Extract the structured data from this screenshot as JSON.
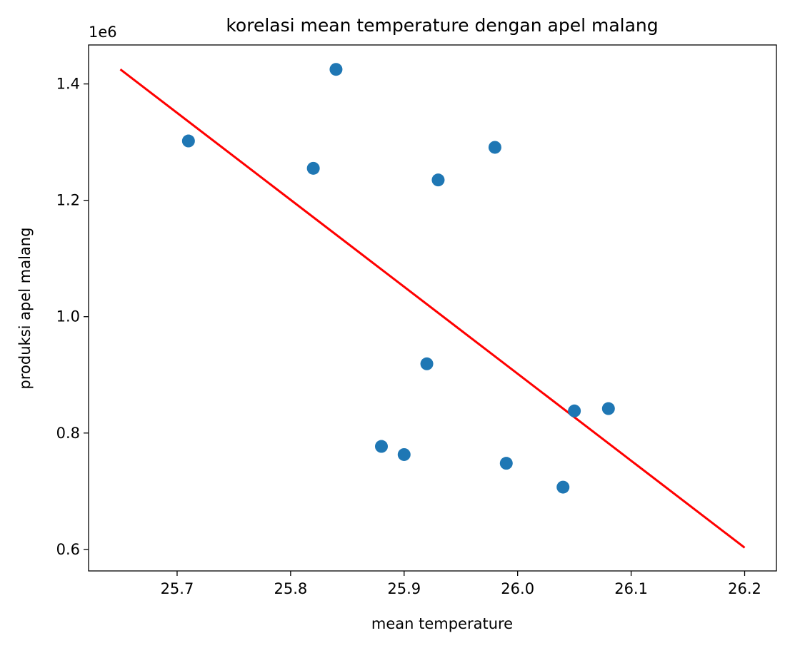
{
  "chart_data": {
    "type": "scatter",
    "title": "korelasi mean temperature dengan apel malang",
    "xlabel": "mean temperature",
    "ylabel": "produksi apel malang",
    "y_offset_label": "1e6",
    "xlim": [
      25.622,
      26.228
    ],
    "ylim": [
      0.563,
      1.467
    ],
    "x_ticks": [
      25.7,
      25.8,
      25.9,
      26.0,
      26.1,
      26.2
    ],
    "x_tick_labels": [
      "25.7",
      "25.8",
      "25.9",
      "26.0",
      "26.1",
      "26.2"
    ],
    "y_ticks": [
      0.6,
      0.8,
      1.0,
      1.2,
      1.4
    ],
    "y_tick_labels": [
      "0.6",
      "0.8",
      "1.0",
      "1.2",
      "1.4"
    ],
    "grid": false,
    "points": {
      "color": "#1f77b4",
      "x": [
        25.71,
        25.82,
        25.84,
        25.88,
        25.9,
        25.92,
        25.93,
        25.98,
        25.99,
        26.04,
        26.05,
        26.08
      ],
      "y": [
        1.302,
        1.255,
        1.425,
        0.777,
        0.763,
        0.919,
        1.235,
        1.291,
        0.748,
        0.707,
        0.838,
        0.842
      ]
    },
    "trend_line": {
      "color": "#ff0000",
      "x": [
        25.65,
        26.2
      ],
      "y": [
        1.425,
        0.603
      ]
    }
  }
}
